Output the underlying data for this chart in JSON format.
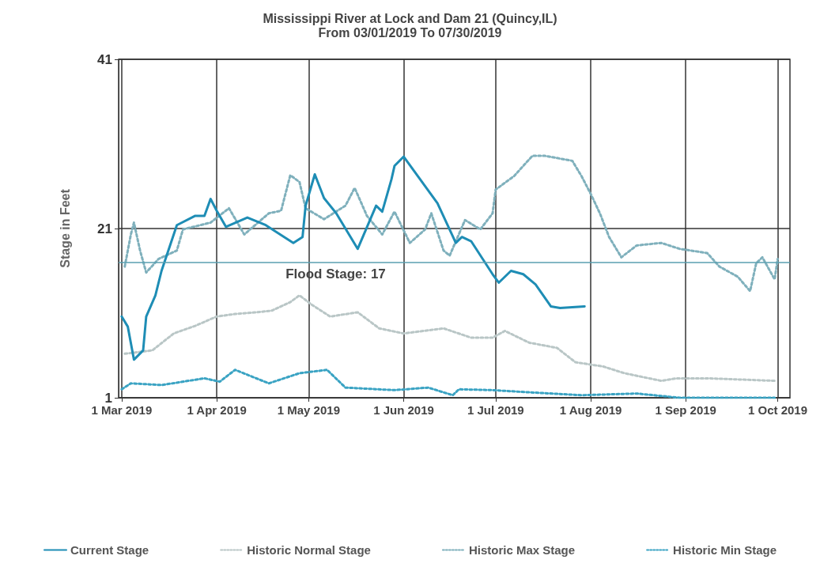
{
  "chart_data": {
    "type": "line",
    "title": "Mississippi River at Lock and Dam 21 (Quincy,IL)",
    "subtitle": "From 03/01/2019 To 07/30/2019",
    "ylabel": "Stage in Feet",
    "xlim": [
      "2019-02-28",
      "2019-10-05"
    ],
    "ylim": [
      1,
      41
    ],
    "yticks": [
      1,
      21,
      41
    ],
    "xticks": [
      {
        "value": "2019-03-01",
        "label": "1 Mar 2019"
      },
      {
        "value": "2019-04-01",
        "label": "1 Apr 2019"
      },
      {
        "value": "2019-05-01",
        "label": "1 May 2019"
      },
      {
        "value": "2019-06-01",
        "label": "1 Jun 2019"
      },
      {
        "value": "2019-07-01",
        "label": "1 Jul 2019"
      },
      {
        "value": "2019-08-01",
        "label": "1 Aug 2019"
      },
      {
        "value": "2019-09-01",
        "label": "1 Sep 2019"
      },
      {
        "value": "2019-10-01",
        "label": "1 Oct 2019"
      }
    ],
    "grid": true,
    "legend": "bottom",
    "marker": "none",
    "ref_lines": [
      {
        "axis": "y",
        "value": 17,
        "label": "Flood Stage: 17",
        "color": "#5a9fb0"
      }
    ],
    "series": [
      {
        "name": "Current Stage",
        "color": "#1e8db5",
        "line_style": "solid",
        "x": [
          "2019-03-01",
          "2019-03-03",
          "2019-03-05",
          "2019-03-08",
          "2019-03-09",
          "2019-03-12",
          "2019-03-14",
          "2019-03-19",
          "2019-03-25",
          "2019-03-28",
          "2019-03-30",
          "2019-04-01",
          "2019-04-04",
          "2019-04-11",
          "2019-04-17",
          "2019-04-26",
          "2019-04-29",
          "2019-04-30",
          "2019-05-03",
          "2019-05-06",
          "2019-05-10",
          "2019-05-17",
          "2019-05-23",
          "2019-05-25",
          "2019-05-28",
          "2019-05-29",
          "2019-06-01",
          "2019-06-12",
          "2019-06-18",
          "2019-06-20",
          "2019-06-23",
          "2019-06-30",
          "2019-07-02",
          "2019-07-06",
          "2019-07-10",
          "2019-07-14",
          "2019-07-19",
          "2019-07-22",
          "2019-07-30"
        ],
        "values": [
          10.6,
          9.4,
          5.5,
          6.6,
          10.6,
          13.1,
          16,
          21.4,
          22.5,
          22.5,
          24.5,
          23.1,
          21.2,
          22.3,
          21.4,
          19.3,
          20,
          23.7,
          27.4,
          24.6,
          22.8,
          18.6,
          23.7,
          23,
          26.8,
          28.4,
          29.5,
          24,
          19.3,
          20,
          19.5,
          15.6,
          14.6,
          16,
          15.6,
          14.4,
          11.8,
          11.6,
          11.8
        ]
      },
      {
        "name": "Historic Normal Stage",
        "color": "#b9c6c6",
        "line_style": "dotted",
        "x": [
          "2019-03-02",
          "2019-03-11",
          "2019-03-18",
          "2019-03-25",
          "2019-04-01",
          "2019-04-07",
          "2019-04-14",
          "2019-04-19",
          "2019-04-25",
          "2019-04-28",
          "2019-05-02",
          "2019-05-08",
          "2019-05-17",
          "2019-05-24",
          "2019-06-01",
          "2019-06-14",
          "2019-06-23",
          "2019-06-30",
          "2019-07-04",
          "2019-07-12",
          "2019-07-21",
          "2019-07-27",
          "2019-08-05",
          "2019-08-12",
          "2019-08-24",
          "2019-08-29",
          "2019-09-08",
          "2019-09-30"
        ],
        "values": [
          6.2,
          6.6,
          8.6,
          9.5,
          10.6,
          10.9,
          11.1,
          11.3,
          12.3,
          13.1,
          12,
          10.6,
          11.1,
          9.2,
          8.6,
          9.2,
          8.1,
          8.1,
          8.9,
          7.5,
          6.9,
          5.2,
          4.7,
          3.9,
          3,
          3.3,
          3.3,
          3
        ]
      },
      {
        "name": "Historic Max Stage",
        "color": "#7fb0bc",
        "line_style": "dotted",
        "x": [
          "2019-03-02",
          "2019-03-04",
          "2019-03-05",
          "2019-03-07",
          "2019-03-09",
          "2019-03-13",
          "2019-03-19",
          "2019-03-21",
          "2019-03-30",
          "2019-04-05",
          "2019-04-10",
          "2019-04-18",
          "2019-04-22",
          "2019-04-25",
          "2019-04-28",
          "2019-04-30",
          "2019-05-06",
          "2019-05-13",
          "2019-05-16",
          "2019-05-20",
          "2019-05-25",
          "2019-05-29",
          "2019-06-03",
          "2019-06-08",
          "2019-06-10",
          "2019-06-14",
          "2019-06-16",
          "2019-06-21",
          "2019-06-26",
          "2019-06-30",
          "2019-07-01",
          "2019-07-07",
          "2019-07-13",
          "2019-07-17",
          "2019-07-26",
          "2019-07-29",
          "2019-08-01",
          "2019-08-04",
          "2019-08-07",
          "2019-08-11",
          "2019-08-16",
          "2019-08-24",
          "2019-08-30",
          "2019-09-08",
          "2019-09-12",
          "2019-09-18",
          "2019-09-22",
          "2019-09-24",
          "2019-09-26",
          "2019-09-30",
          "2019-10-01"
        ],
        "values": [
          16.5,
          20.3,
          21.7,
          18.4,
          15.8,
          17.4,
          18.4,
          20.9,
          21.7,
          23.4,
          20.3,
          22.8,
          23.1,
          27.3,
          26.5,
          23.4,
          22.1,
          23.7,
          25.8,
          22.5,
          20.3,
          23,
          19.3,
          20.9,
          22.8,
          18.4,
          17.8,
          22,
          20.9,
          22.8,
          25.6,
          27.2,
          29.6,
          29.6,
          29,
          27.2,
          25.1,
          22.8,
          20,
          17.6,
          19,
          19.3,
          18.6,
          18.1,
          16.5,
          15.3,
          13.6,
          16.9,
          17.6,
          15,
          17.4
        ]
      },
      {
        "name": "Historic Min Stage",
        "color": "#3aa3c3",
        "line_style": "dotted",
        "x": [
          "2019-03-01",
          "2019-03-04",
          "2019-03-14",
          "2019-03-28",
          "2019-04-02",
          "2019-04-07",
          "2019-04-18",
          "2019-04-28",
          "2019-05-07",
          "2019-05-13",
          "2019-05-29",
          "2019-06-09",
          "2019-06-17",
          "2019-06-19",
          "2019-06-30",
          "2019-07-14",
          "2019-07-29",
          "2019-08-16",
          "2019-08-30",
          "2019-09-30"
        ],
        "values": [
          2,
          2.7,
          2.5,
          3.3,
          2.9,
          4.3,
          2.7,
          3.9,
          4.3,
          2.2,
          1.9,
          2.2,
          1.3,
          2,
          1.9,
          1.6,
          1.3,
          1.5,
          1,
          1
        ]
      }
    ]
  }
}
